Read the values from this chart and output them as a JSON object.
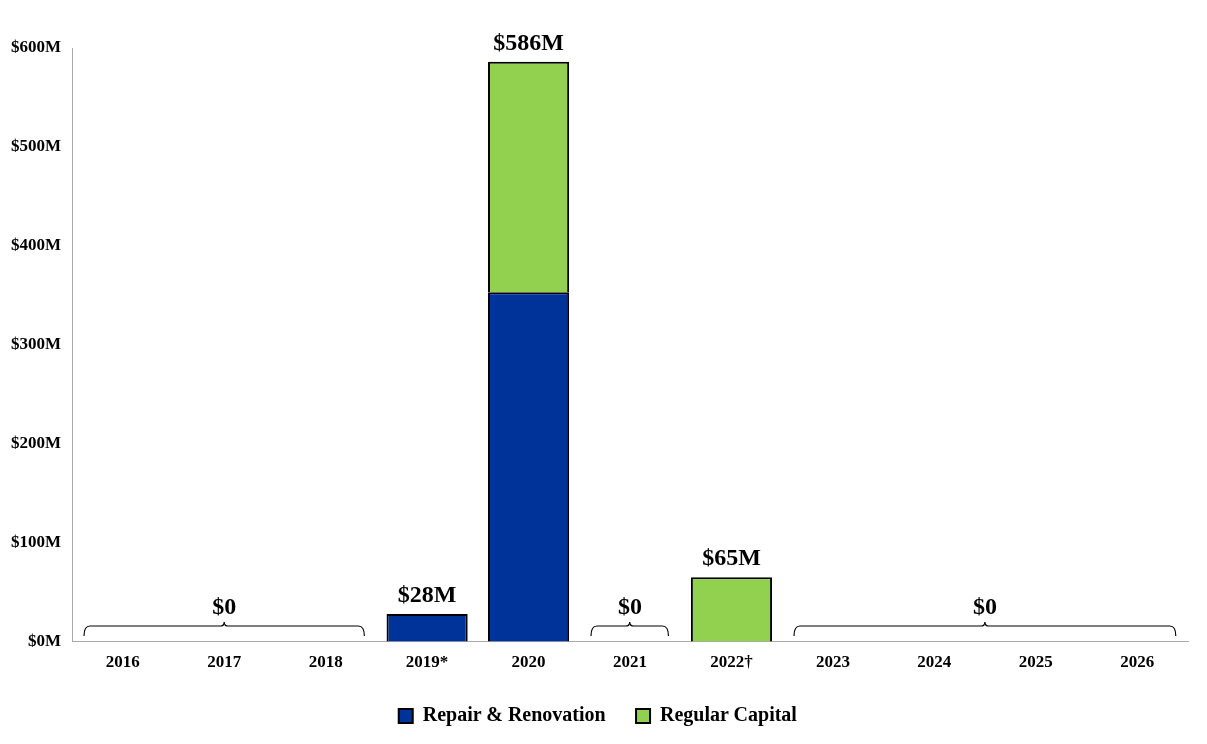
{
  "chart_data": {
    "type": "bar",
    "stacked": true,
    "categories": [
      "2016",
      "2017",
      "2018",
      "2019*",
      "2020",
      "2021",
      "2022†",
      "2023",
      "2024",
      "2025",
      "2026"
    ],
    "series": [
      {
        "name": "Repair & Renovation",
        "color": "#003399",
        "values": [
          0,
          0,
          0,
          28,
          353,
          0,
          0,
          0,
          0,
          0,
          0
        ]
      },
      {
        "name": "Regular Capital",
        "color": "#92d050",
        "values": [
          0,
          0,
          0,
          0,
          233,
          0,
          65,
          0,
          0,
          0,
          0
        ]
      }
    ],
    "totals": [
      null,
      null,
      null,
      "$28M",
      "$586M",
      null,
      "$65M",
      null,
      null,
      null,
      null
    ],
    "annotations": [
      "$0",
      "$0",
      "$0"
    ],
    "ylim": [
      0,
      600
    ],
    "yticks": [
      {
        "value": 0,
        "label": "$0M"
      },
      {
        "value": 100,
        "label": "$100M"
      },
      {
        "value": 200,
        "label": "$200M"
      },
      {
        "value": 300,
        "label": "$300M"
      },
      {
        "value": 400,
        "label": "$400M"
      },
      {
        "value": 500,
        "label": "$500M"
      },
      {
        "value": 600,
        "label": "$600M"
      }
    ],
    "grid": false,
    "legend": "bottom"
  }
}
